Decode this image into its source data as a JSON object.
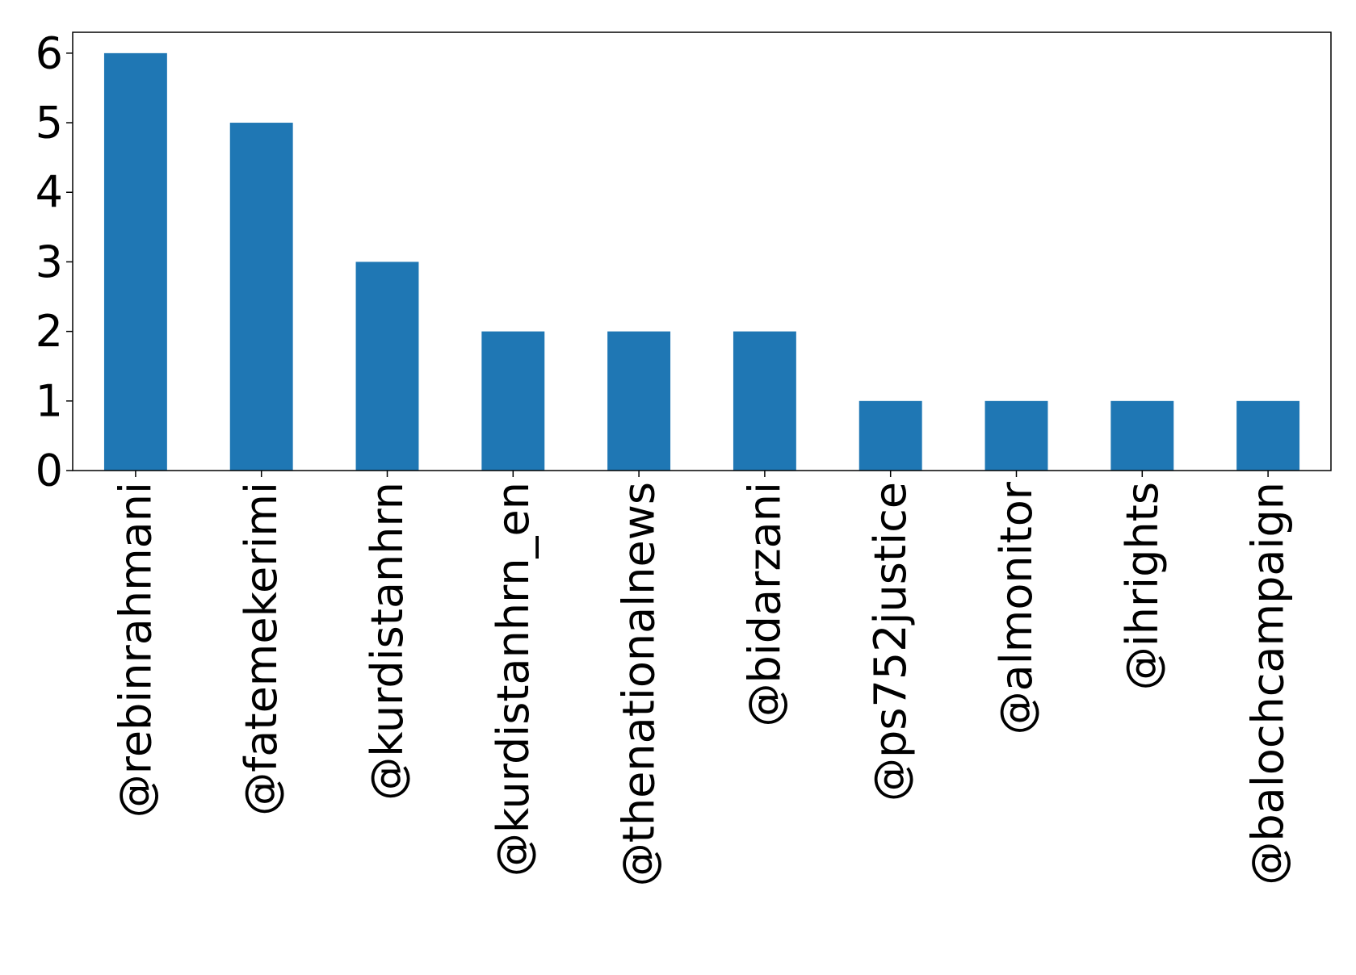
{
  "chart_data": {
    "type": "bar",
    "title": "",
    "xlabel": "",
    "ylabel": "",
    "categories": [
      "@rebinrahmani",
      "@fatemekerimi",
      "@kurdistanhrn",
      "@kurdistanhrn_en",
      "@thenationalnews",
      "@bidarzani",
      "@ps752justice",
      "@almonitor",
      "@ihrights",
      "@balochcampaign"
    ],
    "values": [
      6,
      5,
      3,
      2,
      2,
      2,
      1,
      1,
      1,
      1
    ],
    "ylim": [
      0,
      6.3
    ],
    "yticks": [
      0,
      1,
      2,
      3,
      4,
      5,
      6
    ],
    "grid": false,
    "legend": "none",
    "bar_color": "#1f77b4",
    "axis_color": "#000000"
  }
}
